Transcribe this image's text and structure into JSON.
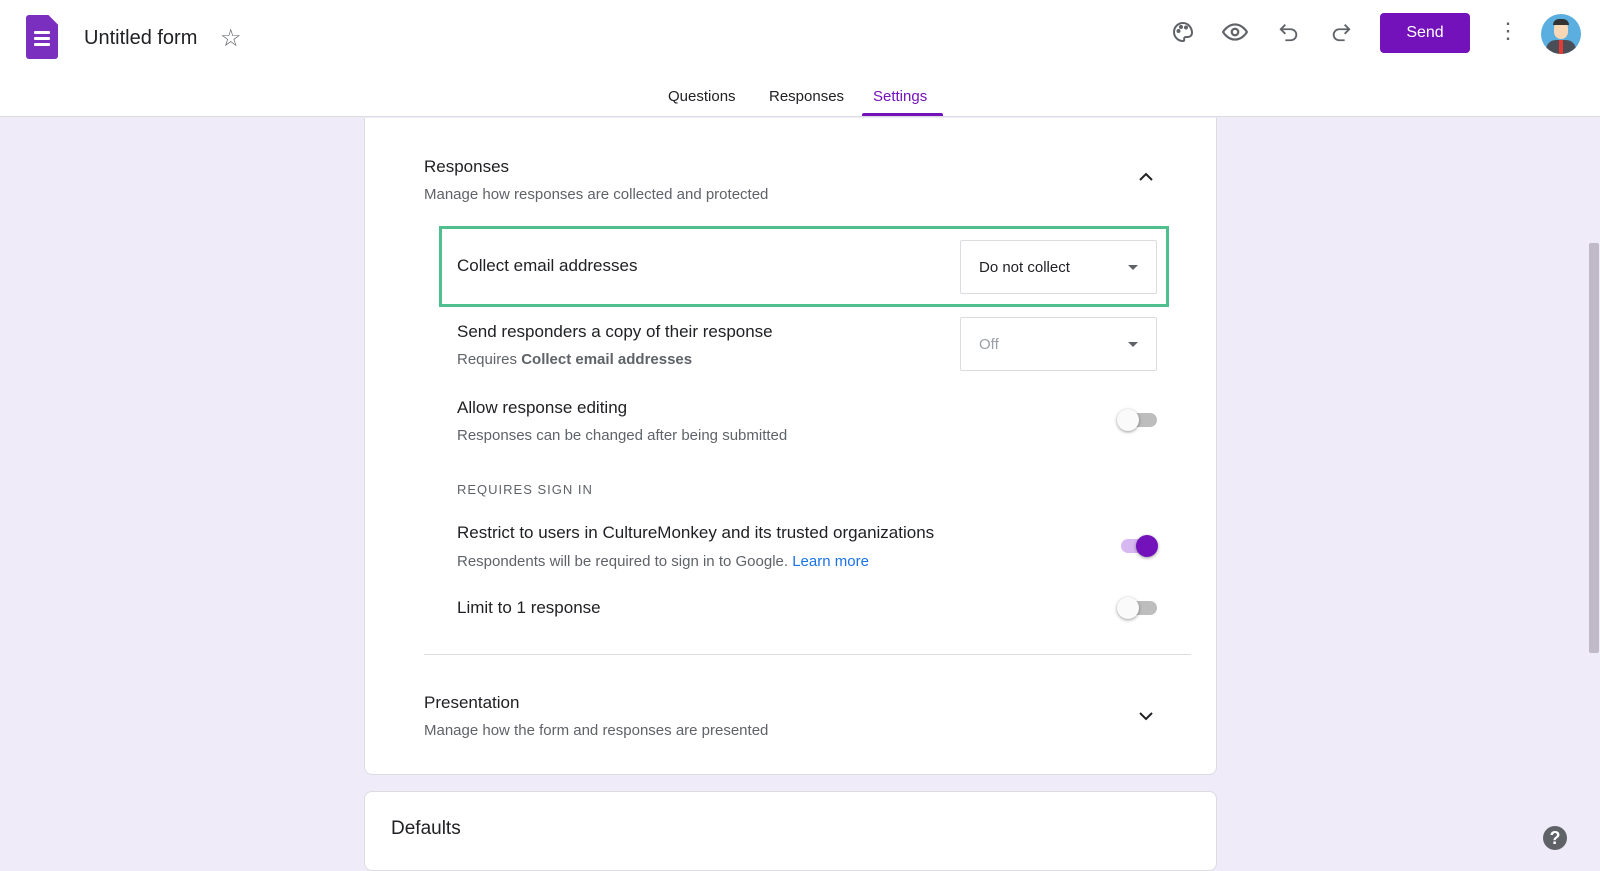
{
  "header": {
    "title": "Untitled form",
    "send_label": "Send",
    "icons": [
      "forms-logo-icon",
      "star-icon",
      "palette-icon",
      "eye-icon",
      "undo-icon",
      "redo-icon",
      "more-vert-icon",
      "avatar"
    ]
  },
  "tabs": [
    {
      "label": "Questions"
    },
    {
      "label": "Responses"
    },
    {
      "label": "Settings",
      "active": true
    }
  ],
  "responses": {
    "title": "Responses",
    "subtitle": "Manage how responses are collected and protected",
    "collect_email": {
      "label": "Collect email addresses",
      "value": "Do not collect"
    },
    "send_copy": {
      "label": "Send responders a copy of their response",
      "sub_prefix": "Requires ",
      "sub_bold": "Collect email addresses",
      "value": "Off"
    },
    "allow_edit": {
      "label": "Allow response editing",
      "sub": "Responses can be changed after being submitted",
      "on": false
    },
    "requires_sign_in": "REQUIRES SIGN IN",
    "restrict": {
      "label": "Restrict to users in CultureMonkey and its trusted organizations",
      "sub": "Respondents will be required to sign in to Google. ",
      "link": "Learn more",
      "on": true
    },
    "limit": {
      "label": "Limit to 1 response",
      "on": false
    }
  },
  "presentation": {
    "title": "Presentation",
    "subtitle": "Manage how the form and responses are presented"
  },
  "defaults": {
    "title": "Defaults"
  },
  "colors": {
    "accent": "#7312bb",
    "highlight": "#4fc08d",
    "background": "#f0ebf8",
    "link": "#1a73e8"
  }
}
